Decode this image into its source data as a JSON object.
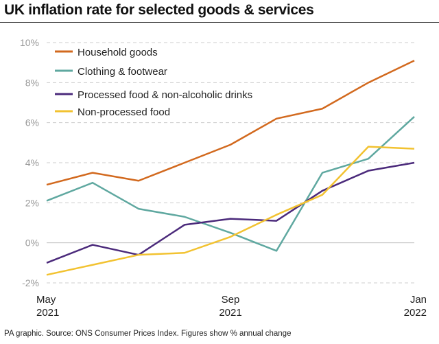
{
  "title": "UK inflation rate for selected goods & services",
  "footer": "PA graphic. Source: ONS Consumer Prices Index. Figures show % annual change",
  "chart_data": {
    "type": "line",
    "x": [
      "May 2021",
      "Jun 2021",
      "Jul 2021",
      "Aug 2021",
      "Sep 2021",
      "Oct 2021",
      "Nov 2021",
      "Dec 2021",
      "Jan 2022"
    ],
    "x_tick_labels": [
      {
        "month": "May",
        "year": "2021",
        "index": 0
      },
      {
        "month": "Sep",
        "year": "2021",
        "index": 4
      },
      {
        "month": "Jan",
        "year": "2022",
        "index": 8
      }
    ],
    "ylim": [
      -2,
      10
    ],
    "y_ticks": [
      -2,
      0,
      2,
      4,
      6,
      8,
      10
    ],
    "y_tick_labels": [
      "-2%",
      "0%",
      "2%",
      "4%",
      "6%",
      "8%",
      "10%"
    ],
    "grid": true,
    "legend_placement": "top-left",
    "series": [
      {
        "name": "Household goods",
        "color": "#d2691e",
        "values": [
          2.9,
          3.5,
          3.1,
          4.0,
          4.9,
          6.2,
          6.7,
          8.0,
          9.1
        ]
      },
      {
        "name": "Clothing & footwear",
        "color": "#5fa8a0",
        "values": [
          2.1,
          3.0,
          1.7,
          1.3,
          0.5,
          -0.4,
          3.5,
          4.2,
          6.3
        ]
      },
      {
        "name": "Processed food & non-alcoholic drinks",
        "color": "#4b2a7b",
        "values": [
          -1.0,
          -0.1,
          -0.6,
          0.9,
          1.2,
          1.1,
          2.6,
          3.6,
          4.0
        ]
      },
      {
        "name": "Non-processed food",
        "color": "#f2c230",
        "values": [
          -1.6,
          -1.1,
          -0.6,
          -0.5,
          0.3,
          1.4,
          2.4,
          4.8,
          4.7
        ]
      }
    ]
  }
}
